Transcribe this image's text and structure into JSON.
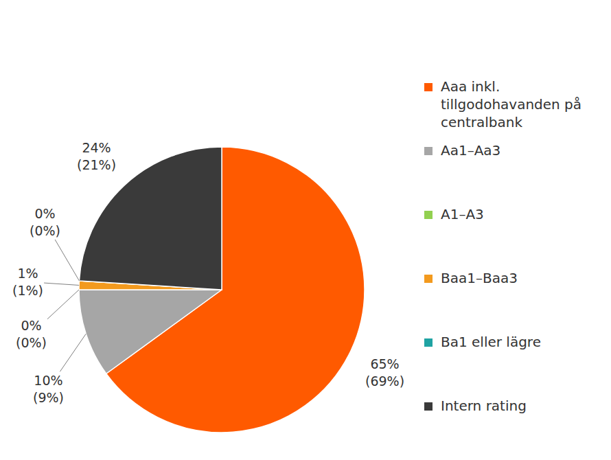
{
  "chart_data": {
    "type": "pie",
    "categories": [
      "Aaa inkl. tillgodohavanden på centralbank",
      "Aa1–Aa3",
      "A1–A3",
      "Baa1–Baa3",
      "Ba1 eller lägre",
      "Intern rating"
    ],
    "values": [
      65,
      10,
      0,
      1,
      0,
      24
    ],
    "value_labels": [
      "65%",
      "10%",
      "0%",
      "1%",
      "0%",
      "24%"
    ],
    "previous_values": [
      69,
      9,
      0,
      1,
      0,
      21
    ],
    "previous_value_labels": [
      "(69%)",
      "(9%)",
      "(0%)",
      "(1%)",
      "(0%)",
      "(21%)"
    ],
    "colors": [
      "#ff5a00",
      "#a6a6a6",
      "#92d050",
      "#f39a1e",
      "#1fa3a3",
      "#3a3a3a"
    ],
    "legend": "right",
    "data_labels": true
  }
}
